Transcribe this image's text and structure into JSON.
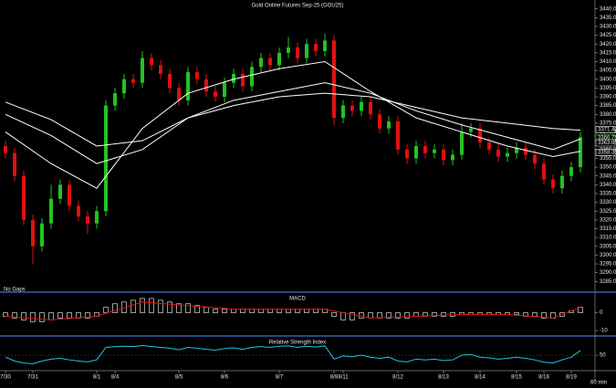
{
  "chart_data": [
    {
      "type": "candlestick",
      "title": "Gold Online Futures Sep-25 (GOU25)",
      "note": "No Gaps",
      "categories": [
        "7/30",
        null,
        null,
        "7/31",
        null,
        null,
        null,
        null,
        null,
        null,
        "8/1",
        null,
        "8/4",
        null,
        null,
        null,
        null,
        null,
        null,
        "8/5",
        null,
        null,
        null,
        null,
        "8/6",
        null,
        null,
        null,
        null,
        null,
        "8/7",
        null,
        null,
        null,
        null,
        null,
        "8/8",
        "8/11",
        null,
        null,
        null,
        null,
        null,
        "8/12",
        null,
        null,
        null,
        null,
        "8/13",
        null,
        null,
        null,
        "8/14",
        null,
        null,
        null,
        "8/15",
        null,
        null,
        "8/18",
        null,
        null,
        "8/19",
        null
      ],
      "open": [
        3362,
        3358,
        3345,
        3320,
        3305,
        3318,
        3332,
        3340,
        3328,
        3322,
        3318,
        3325,
        3385,
        3392,
        3400,
        3398,
        3412,
        3408,
        3403,
        3395,
        3388,
        3404,
        3400,
        3393,
        3390,
        3398,
        3403,
        3396,
        3407,
        3412,
        3408,
        3415,
        3418,
        3412,
        3420,
        3416,
        3422,
        3378,
        3385,
        3382,
        3387,
        3380,
        3372,
        3376,
        3360,
        3355,
        3362,
        3358,
        3360,
        3354,
        3357,
        3370,
        3372,
        3364,
        3360,
        3356,
        3358,
        3361,
        3357,
        3352,
        3343,
        3338,
        3345,
        3350
      ],
      "high": [
        3365,
        3361,
        3348,
        3323,
        3321,
        3340,
        3343,
        3343,
        3331,
        3325,
        3328,
        3388,
        3395,
        3403,
        3403,
        3416,
        3415,
        3411,
        3406,
        3398,
        3407,
        3407,
        3403,
        3396,
        3401,
        3406,
        3406,
        3410,
        3415,
        3415,
        3418,
        3424,
        3421,
        3423,
        3423,
        3426,
        3425,
        3388,
        3388,
        3390,
        3390,
        3383,
        3379,
        3379,
        3363,
        3365,
        3365,
        3363,
        3363,
        3360,
        3375,
        3375,
        3375,
        3367,
        3363,
        3361,
        3364,
        3364,
        3360,
        3355,
        3346,
        3348,
        3353,
        3370
      ],
      "low": [
        3355,
        3342,
        3317,
        3295,
        3302,
        3315,
        3329,
        3325,
        3319,
        3312,
        3315,
        3322,
        3382,
        3389,
        3395,
        3395,
        3405,
        3400,
        3392,
        3385,
        3385,
        3397,
        3390,
        3387,
        3387,
        3395,
        3393,
        3393,
        3404,
        3405,
        3405,
        3412,
        3409,
        3409,
        3413,
        3413,
        3374,
        3375,
        3379,
        3379,
        3377,
        3369,
        3369,
        3357,
        3352,
        3352,
        3355,
        3355,
        3351,
        3351,
        3354,
        3367,
        3361,
        3357,
        3353,
        3353,
        3355,
        3354,
        3349,
        3340,
        3335,
        3335,
        3342,
        3347
      ],
      "close": [
        3358,
        3345,
        3320,
        3305,
        3318,
        3332,
        3340,
        3328,
        3322,
        3318,
        3325,
        3385,
        3392,
        3400,
        3398,
        3412,
        3408,
        3403,
        3395,
        3388,
        3404,
        3400,
        3393,
        3390,
        3398,
        3403,
        3396,
        3407,
        3412,
        3408,
        3415,
        3418,
        3412,
        3420,
        3416,
        3422,
        3378,
        3385,
        3382,
        3387,
        3380,
        3372,
        3376,
        3360,
        3355,
        3362,
        3358,
        3360,
        3354,
        3357,
        3370,
        3372,
        3364,
        3360,
        3356,
        3358,
        3361,
        3357,
        3352,
        3343,
        3338,
        3345,
        3350,
        3367
      ],
      "up_color": "#22c322",
      "down_color": "#e01010",
      "overlays": [
        {
          "color": "#ffffff",
          "x": [
            0,
            5,
            10,
            15,
            20,
            25,
            30,
            35,
            40,
            45,
            50,
            55,
            60,
            63
          ],
          "values": [
            3370,
            3352,
            3338,
            3372,
            3392,
            3400,
            3406,
            3410,
            3393,
            3378,
            3370,
            3362,
            3356,
            3359
          ]
        },
        {
          "color": "#ffffff",
          "x": [
            0,
            5,
            10,
            15,
            20,
            25,
            30,
            35,
            40,
            45,
            50,
            55,
            60,
            63
          ],
          "values": [
            3380,
            3368,
            3352,
            3360,
            3378,
            3388,
            3393,
            3398,
            3392,
            3382,
            3374,
            3367,
            3360,
            3366
          ]
        },
        {
          "color": "#ffffff",
          "x": [
            0,
            5,
            10,
            15,
            20,
            25,
            30,
            35,
            40,
            45,
            50,
            55,
            60,
            63
          ],
          "values": [
            3387,
            3377,
            3362,
            3365,
            3378,
            3385,
            3390,
            3392,
            3390,
            3384,
            3378,
            3375,
            3372,
            3371
          ]
        }
      ],
      "price_labels": [
        {
          "value": 3371.4,
          "label": "3371.40"
        },
        {
          "value": 3366.75,
          "label": "3366.75"
        },
        {
          "value": 3363.8,
          "label": "3363.80"
        },
        {
          "value": 3358.35,
          "label": "3358.35"
        }
      ],
      "ylim": [
        3281,
        3444
      ],
      "yticks": [
        {
          "value": 3440,
          "label": "3440.00"
        },
        {
          "value": 3435,
          "label": "3435.00"
        },
        {
          "value": 3430,
          "label": "3430.00"
        },
        {
          "value": 3425,
          "label": "3425.00"
        },
        {
          "value": 3420,
          "label": "3420.00"
        },
        {
          "value": 3415,
          "label": "3415.00"
        },
        {
          "value": 3410,
          "label": "3410.00"
        },
        {
          "value": 3405,
          "label": "3405.00"
        },
        {
          "value": 3400,
          "label": "3400.00"
        },
        {
          "value": 3395,
          "label": "3395.00"
        },
        {
          "value": 3390,
          "label": "3390.00"
        },
        {
          "value": 3385,
          "label": "3385.00"
        },
        {
          "value": 3380,
          "label": "3380.00"
        },
        {
          "value": 3375,
          "label": "3375.00"
        },
        {
          "value": 3370,
          "label": "3370.00"
        },
        {
          "value": 3365,
          "label": "3365.00"
        },
        {
          "value": 3360,
          "label": "3360.00"
        },
        {
          "value": 3355,
          "label": "3355.00"
        },
        {
          "value": 3350,
          "label": "3350.00"
        },
        {
          "value": 3345,
          "label": "3345.00"
        },
        {
          "value": 3340,
          "label": "3340.00"
        },
        {
          "value": 3335,
          "label": "3335.00"
        },
        {
          "value": 3330,
          "label": "3330.00"
        },
        {
          "value": 3325,
          "label": "3325.00"
        },
        {
          "value": 3320,
          "label": "3320.00"
        },
        {
          "value": 3315,
          "label": "3315.00"
        },
        {
          "value": 3310,
          "label": "3310.00"
        },
        {
          "value": 3305,
          "label": "3305.00"
        },
        {
          "value": 3300,
          "label": "3300.00"
        },
        {
          "value": 3295,
          "label": "3295.00"
        },
        {
          "value": 3290,
          "label": "3290.00"
        },
        {
          "value": 3285,
          "label": "3285.00"
        }
      ]
    },
    {
      "type": "bar",
      "title": "MACD",
      "color": "#ffffff",
      "values": [
        -2,
        -3,
        -4,
        -5,
        -5,
        -4,
        -3,
        -3,
        -3,
        -3,
        -2,
        3,
        5,
        6,
        7,
        8,
        8,
        7,
        6,
        5,
        5,
        4,
        3,
        2,
        2,
        2,
        2,
        2,
        2,
        2,
        2,
        2,
        2,
        2,
        2,
        2,
        -2,
        -4,
        -4,
        -3,
        -3,
        -3,
        -3,
        -3,
        -3,
        -2,
        -2,
        -2,
        -2,
        -2,
        -1,
        -1,
        -1,
        -1,
        -1,
        -1,
        -1,
        -2,
        -2,
        -3,
        -3,
        -2,
        1,
        3
      ],
      "overlays": [
        {
          "color": "#e01010",
          "x": [
            0,
            5,
            10,
            15,
            20,
            25,
            30,
            35,
            40,
            45,
            50,
            55,
            60,
            63
          ],
          "values": [
            -2,
            -4,
            -2,
            6,
            4,
            2,
            2,
            2,
            -3,
            -2,
            -1,
            -1,
            -3,
            3
          ]
        }
      ],
      "ylim": [
        -12,
        10
      ],
      "yticks": [
        0,
        -10
      ]
    },
    {
      "type": "line",
      "title": "Relative Strength Index",
      "color": "#1ec8e0",
      "values": [
        45,
        35,
        30,
        28,
        35,
        40,
        42,
        38,
        35,
        33,
        38,
        70,
        72,
        73,
        72,
        75,
        72,
        70,
        68,
        64,
        70,
        68,
        65,
        63,
        67,
        69,
        65,
        70,
        72,
        70,
        73,
        74,
        70,
        73,
        71,
        74,
        40,
        48,
        46,
        50,
        45,
        42,
        45,
        35,
        33,
        40,
        38,
        40,
        36,
        38,
        50,
        52,
        45,
        43,
        40,
        42,
        45,
        42,
        38,
        32,
        30,
        38,
        45,
        62
      ],
      "ylim": [
        15,
        90
      ],
      "yticks": [
        50
      ]
    }
  ],
  "footer": "60 min"
}
